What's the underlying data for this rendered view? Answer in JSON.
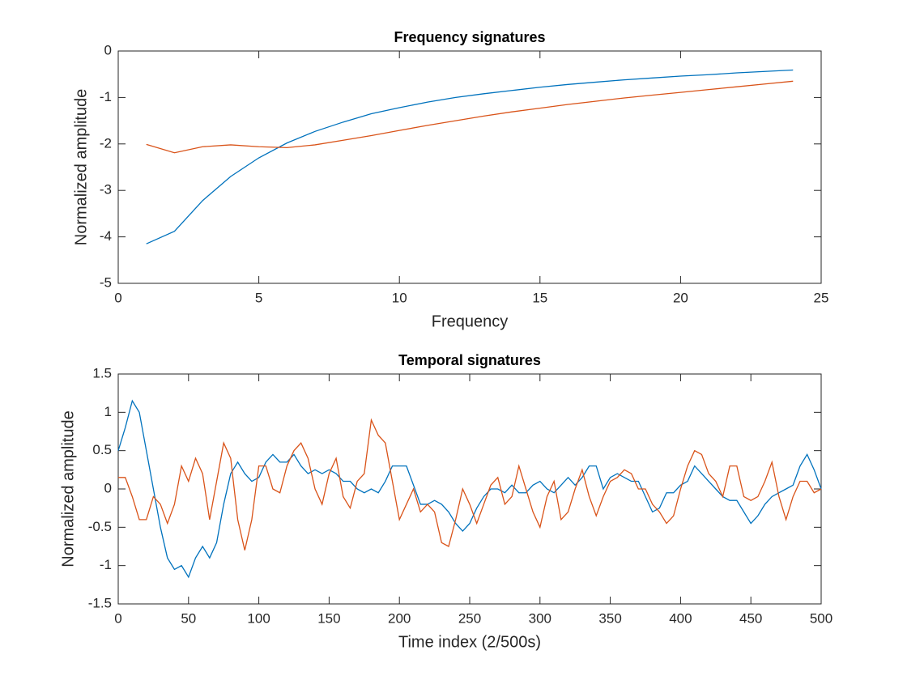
{
  "chart_data": [
    {
      "type": "line",
      "title": "Frequency signatures",
      "xlabel": "Frequency",
      "ylabel": "Normalized amplitude",
      "x": [
        1,
        2,
        3,
        4,
        5,
        6,
        7,
        8,
        9,
        10,
        11,
        12,
        13,
        14,
        15,
        16,
        17,
        18,
        19,
        20,
        21,
        22,
        23,
        24
      ],
      "series": [
        {
          "color": "#0072bd",
          "values": [
            -4.15,
            -3.88,
            -3.22,
            -2.7,
            -2.3,
            -1.98,
            -1.73,
            -1.53,
            -1.35,
            -1.22,
            -1.1,
            -1.0,
            -0.92,
            -0.85,
            -0.78,
            -0.72,
            -0.67,
            -0.62,
            -0.58,
            -0.54,
            -0.51,
            -0.47,
            -0.44,
            -0.41
          ]
        },
        {
          "color": "#d95319",
          "values": [
            -2.01,
            -2.19,
            -2.06,
            -2.02,
            -2.06,
            -2.08,
            -2.02,
            -1.92,
            -1.82,
            -1.71,
            -1.6,
            -1.5,
            -1.4,
            -1.31,
            -1.23,
            -1.15,
            -1.08,
            -1.01,
            -0.95,
            -0.89,
            -0.83,
            -0.77,
            -0.71,
            -0.65
          ]
        }
      ],
      "xlim": [
        0,
        25
      ],
      "xticks": [
        0,
        5,
        10,
        15,
        20,
        25
      ],
      "ylim": [
        -5,
        0
      ],
      "yticks": [
        -5,
        -4,
        -3,
        -2,
        -1,
        0
      ]
    },
    {
      "type": "line",
      "title": "Temporal signatures",
      "xlabel": "Time index (2/500s)",
      "ylabel": "Normalized amplitude",
      "x": [
        0,
        5,
        10,
        15,
        20,
        25,
        30,
        35,
        40,
        45,
        50,
        55,
        60,
        65,
        70,
        75,
        80,
        85,
        90,
        95,
        100,
        105,
        110,
        115,
        120,
        125,
        130,
        135,
        140,
        145,
        150,
        155,
        160,
        165,
        170,
        175,
        180,
        185,
        190,
        195,
        200,
        205,
        210,
        215,
        220,
        225,
        230,
        235,
        240,
        245,
        250,
        255,
        260,
        265,
        270,
        275,
        280,
        285,
        290,
        295,
        300,
        305,
        310,
        315,
        320,
        325,
        330,
        335,
        340,
        345,
        350,
        355,
        360,
        365,
        370,
        375,
        380,
        385,
        390,
        395,
        400,
        405,
        410,
        415,
        420,
        425,
        430,
        435,
        440,
        445,
        450,
        455,
        460,
        465,
        470,
        475,
        480,
        485,
        490,
        495,
        500
      ],
      "series": [
        {
          "color": "#0072bd",
          "values": [
            0.5,
            0.8,
            1.15,
            1.0,
            0.5,
            0.0,
            -0.5,
            -0.9,
            -1.05,
            -1.0,
            -1.15,
            -0.9,
            -0.75,
            -0.9,
            -0.7,
            -0.2,
            0.2,
            0.35,
            0.2,
            0.1,
            0.15,
            0.35,
            0.45,
            0.35,
            0.35,
            0.45,
            0.3,
            0.2,
            0.25,
            0.2,
            0.25,
            0.2,
            0.1,
            0.1,
            0.0,
            -0.05,
            0.0,
            -0.05,
            0.1,
            0.3,
            0.3,
            0.3,
            0.05,
            -0.2,
            -0.2,
            -0.15,
            -0.2,
            -0.3,
            -0.45,
            -0.55,
            -0.45,
            -0.25,
            -0.1,
            0.0,
            0.0,
            -0.05,
            0.05,
            -0.05,
            -0.05,
            0.05,
            0.1,
            0.0,
            -0.05,
            0.05,
            0.15,
            0.05,
            0.15,
            0.3,
            0.3,
            0.0,
            0.15,
            0.2,
            0.15,
            0.1,
            0.1,
            -0.1,
            -0.3,
            -0.25,
            -0.05,
            -0.05,
            0.05,
            0.1,
            0.3,
            0.2,
            0.1,
            0.0,
            -0.1,
            -0.15,
            -0.15,
            -0.3,
            -0.45,
            -0.35,
            -0.2,
            -0.1,
            -0.05,
            0.0,
            0.05,
            0.3,
            0.45,
            0.25,
            0.0
          ]
        },
        {
          "color": "#d95319",
          "values": [
            0.15,
            0.15,
            -0.1,
            -0.4,
            -0.4,
            -0.1,
            -0.2,
            -0.45,
            -0.2,
            0.3,
            0.1,
            0.4,
            0.2,
            -0.4,
            0.1,
            0.6,
            0.4,
            -0.4,
            -0.8,
            -0.4,
            0.3,
            0.3,
            0.0,
            -0.05,
            0.3,
            0.5,
            0.6,
            0.4,
            0.0,
            -0.2,
            0.2,
            0.4,
            -0.1,
            -0.25,
            0.1,
            0.2,
            0.9,
            0.7,
            0.6,
            0.1,
            -0.4,
            -0.2,
            0.0,
            -0.3,
            -0.2,
            -0.3,
            -0.7,
            -0.75,
            -0.4,
            0.0,
            -0.2,
            -0.45,
            -0.2,
            0.05,
            0.15,
            -0.2,
            -0.1,
            0.3,
            0.0,
            -0.3,
            -0.5,
            -0.1,
            0.1,
            -0.4,
            -0.3,
            0.0,
            0.25,
            -0.1,
            -0.35,
            -0.1,
            0.1,
            0.15,
            0.25,
            0.2,
            0.0,
            0.0,
            -0.2,
            -0.3,
            -0.45,
            -0.35,
            0.0,
            0.3,
            0.5,
            0.45,
            0.2,
            0.1,
            -0.1,
            0.3,
            0.3,
            -0.1,
            -0.15,
            -0.1,
            0.1,
            0.35,
            -0.1,
            -0.4,
            -0.1,
            0.1,
            0.1,
            -0.05,
            0.0
          ]
        }
      ],
      "xlim": [
        0,
        500
      ],
      "xticks": [
        0,
        50,
        100,
        150,
        200,
        250,
        300,
        350,
        400,
        450,
        500
      ],
      "ylim": [
        -1.5,
        1.5
      ],
      "yticks": [
        -1.5,
        -1,
        -0.5,
        0,
        0.5,
        1,
        1.5
      ]
    }
  ]
}
